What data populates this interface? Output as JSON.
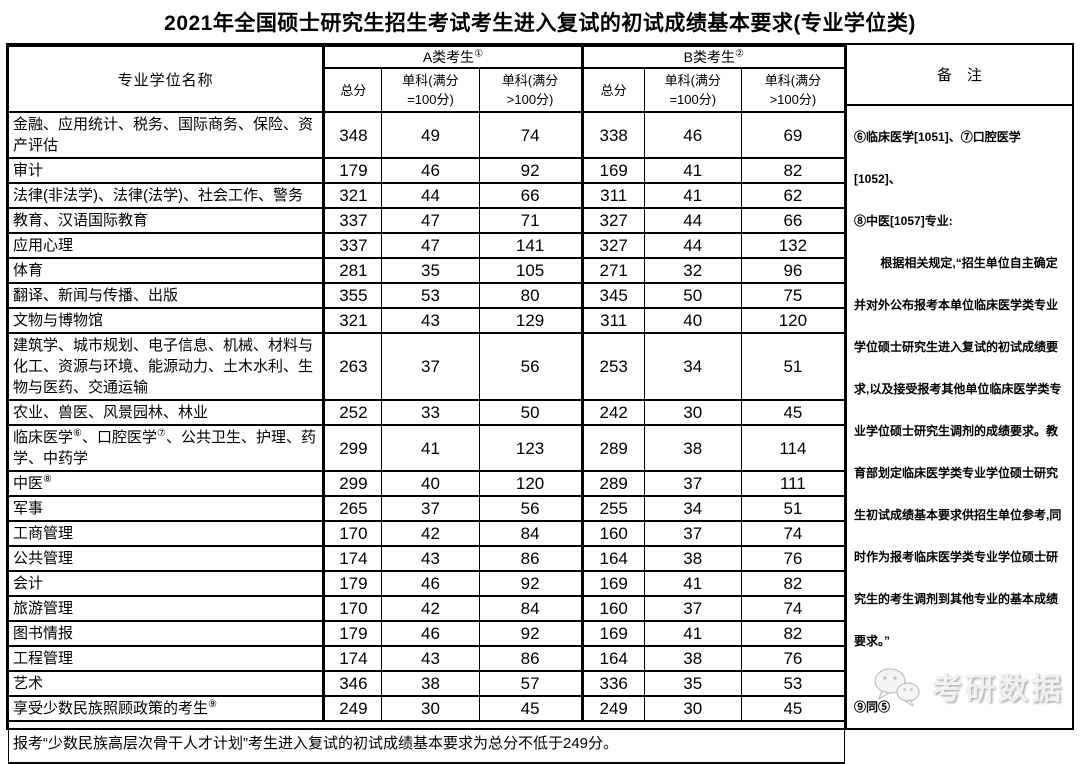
{
  "title": "2021年全国硕士研究生招生考试考生进入复试的初试成绩基本要求(专业学位类)",
  "table": {
    "header": {
      "name_col": "专业学位名称",
      "group_a": "A类考生①",
      "group_b": "B类考生②",
      "remark_col": "备　注",
      "sub_total": "总分",
      "sub_eq100": "单科(满分\n=100分)",
      "sub_gt100": "单科(满分\n>100分)"
    },
    "rows": [
      {
        "name": "金融、应用统计、税务、国际商务、保险、资产评估",
        "a": [
          348,
          49,
          74
        ],
        "b": [
          338,
          46,
          69
        ]
      },
      {
        "name": "审计",
        "a": [
          179,
          46,
          92
        ],
        "b": [
          169,
          41,
          82
        ]
      },
      {
        "name": "法律(非法学)、法律(法学)、社会工作、警务",
        "a": [
          321,
          44,
          66
        ],
        "b": [
          311,
          41,
          62
        ]
      },
      {
        "name": "教育、汉语国际教育",
        "a": [
          337,
          47,
          71
        ],
        "b": [
          327,
          44,
          66
        ]
      },
      {
        "name": "应用心理",
        "a": [
          337,
          47,
          141
        ],
        "b": [
          327,
          44,
          132
        ]
      },
      {
        "name": "体育",
        "a": [
          281,
          35,
          105
        ],
        "b": [
          271,
          32,
          96
        ]
      },
      {
        "name": "翻译、新闻与传播、出版",
        "a": [
          355,
          53,
          80
        ],
        "b": [
          345,
          50,
          75
        ]
      },
      {
        "name": "文物与博物馆",
        "a": [
          321,
          43,
          129
        ],
        "b": [
          311,
          40,
          120
        ]
      },
      {
        "name": "建筑学、城市规划、电子信息、机械、材料与化工、资源与环境、能源动力、土木水利、生物与医药、交通运输",
        "a": [
          263,
          37,
          56
        ],
        "b": [
          253,
          34,
          51
        ]
      },
      {
        "name": "农业、兽医、风景园林、林业",
        "a": [
          252,
          33,
          50
        ],
        "b": [
          242,
          30,
          45
        ]
      },
      {
        "name": "临床医学⑥、口腔医学⑦、公共卫生、护理、药学、中药学",
        "a": [
          299,
          41,
          123
        ],
        "b": [
          289,
          38,
          114
        ]
      },
      {
        "name": "中医⑧",
        "a": [
          299,
          40,
          120
        ],
        "b": [
          289,
          37,
          111
        ]
      },
      {
        "name": "军事",
        "a": [
          265,
          37,
          56
        ],
        "b": [
          255,
          34,
          51
        ]
      },
      {
        "name": "工商管理",
        "a": [
          170,
          42,
          84
        ],
        "b": [
          160,
          37,
          74
        ]
      },
      {
        "name": "公共管理",
        "a": [
          174,
          43,
          86
        ],
        "b": [
          164,
          38,
          76
        ]
      },
      {
        "name": "会计",
        "a": [
          179,
          46,
          92
        ],
        "b": [
          169,
          41,
          82
        ]
      },
      {
        "name": "旅游管理",
        "a": [
          170,
          42,
          84
        ],
        "b": [
          160,
          37,
          74
        ]
      },
      {
        "name": "图书情报",
        "a": [
          179,
          46,
          92
        ],
        "b": [
          169,
          41,
          82
        ]
      },
      {
        "name": "工程管理",
        "a": [
          174,
          43,
          86
        ],
        "b": [
          164,
          38,
          76
        ]
      },
      {
        "name": "艺术",
        "a": [
          346,
          38,
          57
        ],
        "b": [
          336,
          35,
          53
        ]
      },
      {
        "name": "享受少数民族照顾政策的考生⑨",
        "a": [
          249,
          30,
          45
        ],
        "b": [
          249,
          30,
          45
        ]
      }
    ],
    "footer_note": "报考“少数民族高层次骨干人才计划”考生进入复试的初试成绩基本要求为总分不低于249分。"
  },
  "remarks": {
    "medical_heading": "⑥临床医学[1051]、⑦口腔医学[1052]、\n⑧中医[1057]专业:",
    "medical_paragraph": "根据相关规定,“招生单位自主确定并对外公布报考本单位临床医学类专业学位硕士研究生进入复试的初试成绩要求,以及接受报考其他单位临床医学类专业学位硕士研究生调剂的成绩要求。教育部划定临床医学类专业学位硕士研究生初试成绩基本要求供招生单位参考,同时作为报考临床医学类专业学位硕士研究生的考生调剂到其他专业的基本成绩要求。”",
    "note9": "⑨同⑤",
    "watermark_text": "考研数据"
  }
}
